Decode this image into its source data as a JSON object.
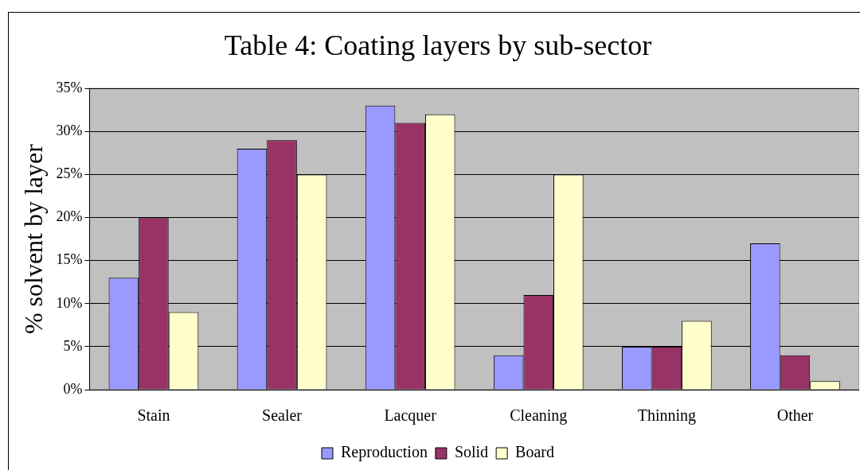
{
  "chart_data": {
    "type": "bar",
    "title": "Table 4: Coating layers by sub-sector",
    "ylabel": "% solvent by layer",
    "categories": [
      "Stain",
      "Sealer",
      "Lacquer",
      "Cleaning",
      "Thinning",
      "Other"
    ],
    "series": [
      {
        "name": "Reproduction",
        "color": "#9999ff",
        "values": [
          13,
          28,
          33,
          4,
          5,
          17
        ]
      },
      {
        "name": "Solid",
        "color": "#993366",
        "values": [
          20,
          29,
          31,
          11,
          5,
          4
        ]
      },
      {
        "name": "Board",
        "color": "#ffffcc",
        "values": [
          9,
          25,
          32,
          25,
          8,
          1
        ]
      }
    ],
    "ylim": [
      0,
      35
    ],
    "yticks": [
      {
        "value": 0,
        "label": "0%"
      },
      {
        "value": 5,
        "label": "5%"
      },
      {
        "value": 10,
        "label": "10%"
      },
      {
        "value": 15,
        "label": "15%"
      },
      {
        "value": 20,
        "label": "20%"
      },
      {
        "value": 25,
        "label": "25%"
      },
      {
        "value": 30,
        "label": "30%"
      },
      {
        "value": 35,
        "label": "35%"
      }
    ],
    "grid": "y",
    "legend": "bottom"
  }
}
